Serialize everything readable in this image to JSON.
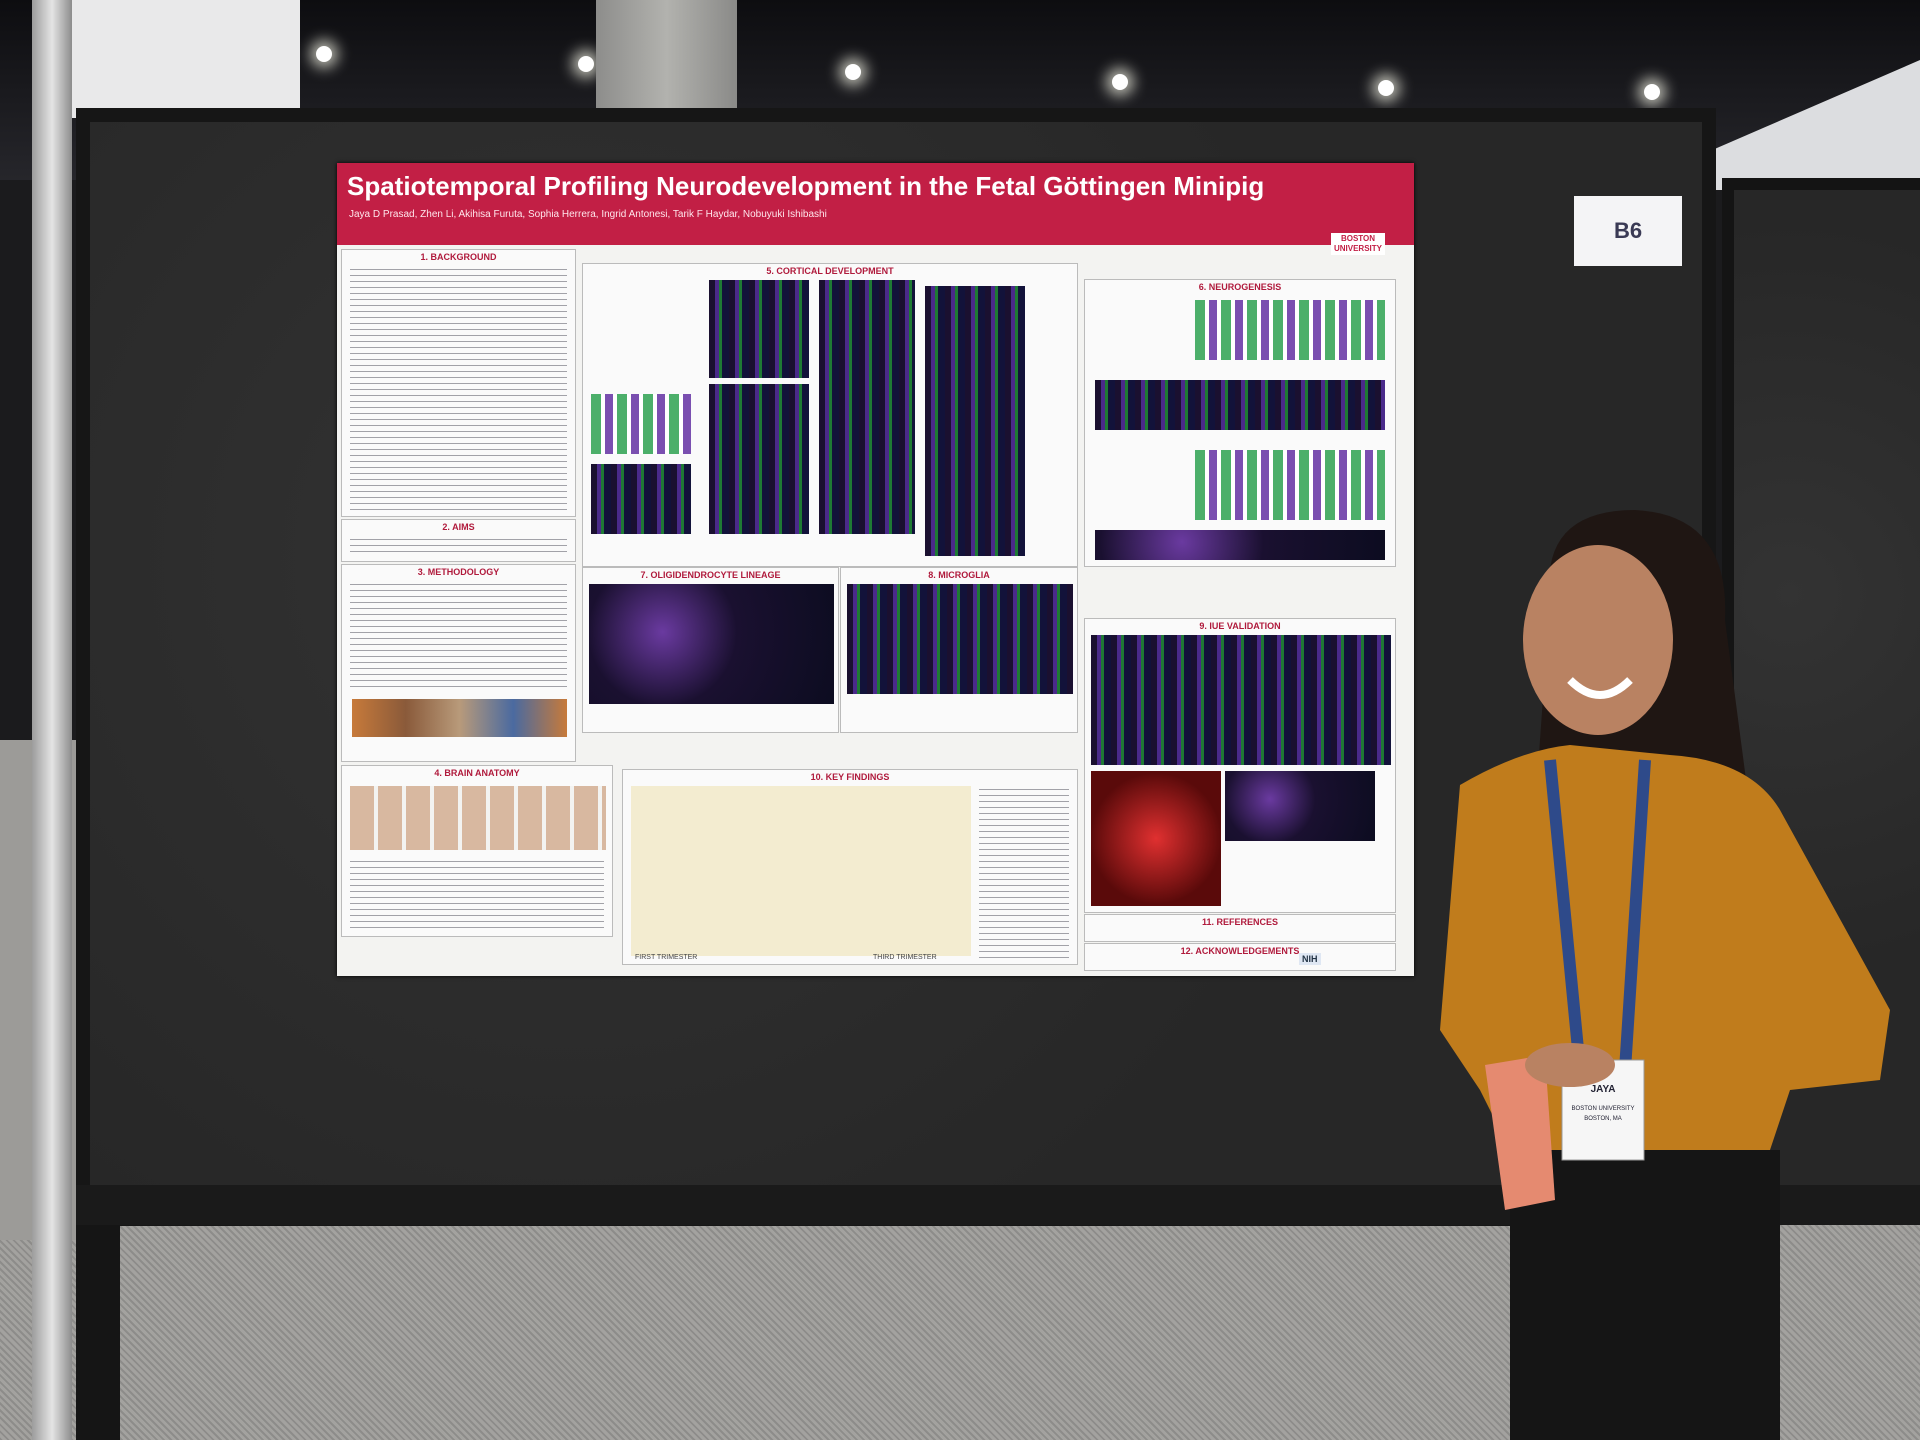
{
  "scene": {
    "board_label": "B6"
  },
  "poster": {
    "title": "Spatiotemporal Profiling Neurodevelopment in the Fetal Göttingen Minipig",
    "authors": "Jaya D Prasad, Zhen Li, Akihisa Furuta, Sophia Herrera, Ingrid Antonesi, Tarik F Haydar, Nobuyuki Ishibashi",
    "logo": "BOSTON UNIVERSITY",
    "sections": [
      "1. BACKGROUND",
      "2. AIMS",
      "3. METHODOLOGY",
      "4. BRAIN ANATOMY",
      "5. CORTICAL DEVELOPMENT",
      "6. NEUROGENESIS",
      "7. OLIGIDENDROCYTE LINEAGE",
      "8. MICROGLIA",
      "9. IUE VALIDATION",
      "10. KEY FINDINGS",
      "11. REFERENCES",
      "12. ACKNOWLEDGEMENTS"
    ],
    "timeline": {
      "start": "FIRST TRIMESTER",
      "end": "THIRD TRIMESTER"
    },
    "funder": "NIH"
  },
  "badge": {
    "name": "JAYA",
    "org": "BOSTON UNIVERSITY",
    "city": "BOSTON, MA"
  }
}
